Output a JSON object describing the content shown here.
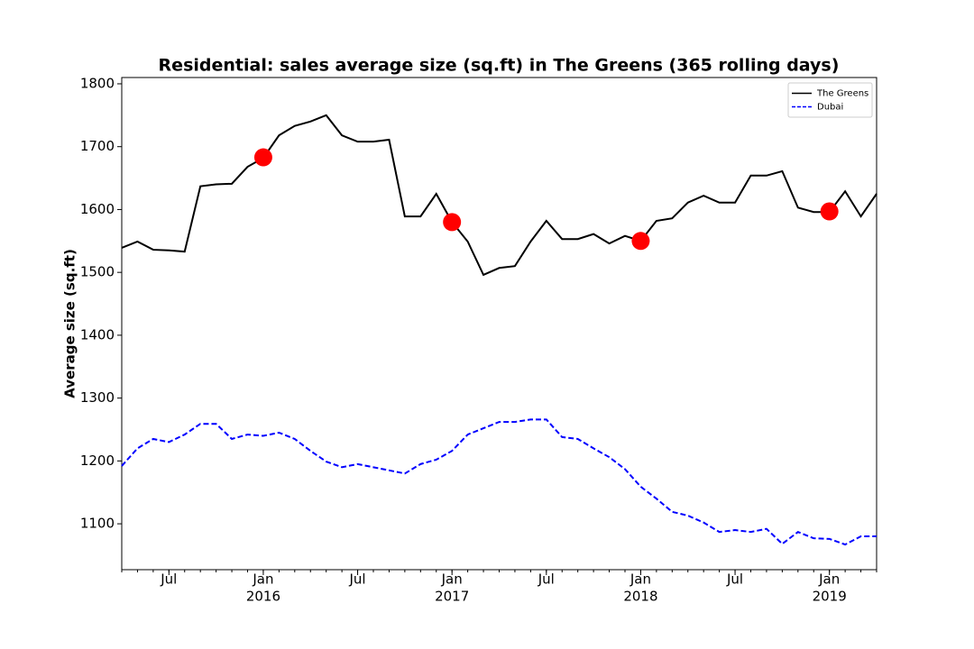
{
  "chart_data": {
    "type": "line",
    "title": "Residential: sales average size (sq.ft) in The Greens (365 rolling days)",
    "ylabel": "Average size (sq.ft)",
    "x": [
      "2015-04",
      "2015-05",
      "2015-06",
      "2015-07",
      "2015-08",
      "2015-09",
      "2015-10",
      "2015-11",
      "2015-12",
      "2016-01",
      "2016-02",
      "2016-03",
      "2016-04",
      "2016-05",
      "2016-06",
      "2016-07",
      "2016-08",
      "2016-09",
      "2016-10",
      "2016-11",
      "2016-12",
      "2017-01",
      "2017-02",
      "2017-03",
      "2017-04",
      "2017-05",
      "2017-06",
      "2017-07",
      "2017-08",
      "2017-09",
      "2017-10",
      "2017-11",
      "2017-12",
      "2018-01",
      "2018-02",
      "2018-03",
      "2018-04",
      "2018-05",
      "2018-06",
      "2018-07",
      "2018-08",
      "2018-09",
      "2018-10",
      "2018-11",
      "2018-12",
      "2019-01",
      "2019-02",
      "2019-03",
      "2019-04"
    ],
    "series": [
      {
        "name": "The Greens",
        "color": "#000000",
        "dash": false,
        "values": [
          1539,
          1549,
          1536,
          1535,
          1533,
          1637,
          1640,
          1641,
          1668,
          1682,
          1718,
          1733,
          1740,
          1750,
          1718,
          1708,
          1708,
          1711,
          1589,
          1589,
          1625,
          1580,
          1549,
          1496,
          1507,
          1510,
          1549,
          1582,
          1553,
          1553,
          1561,
          1546,
          1558,
          1550,
          1582,
          1586,
          1611,
          1622,
          1611,
          1611,
          1654,
          1654,
          1661,
          1603,
          1596,
          1596,
          1629,
          1589,
          1625
        ]
      },
      {
        "name": "Dubai",
        "color": "#0000ff",
        "dash": true,
        "values": [
          1192,
          1220,
          1235,
          1230,
          1242,
          1259,
          1259,
          1235,
          1242,
          1240,
          1245,
          1235,
          1216,
          1199,
          1190,
          1195,
          1190,
          1185,
          1180,
          1195,
          1202,
          1216,
          1242,
          1252,
          1262,
          1262,
          1266,
          1266,
          1238,
          1235,
          1220,
          1206,
          1187,
          1159,
          1140,
          1119,
          1113,
          1102,
          1087,
          1090,
          1087,
          1092,
          1068,
          1087,
          1077,
          1076,
          1067,
          1080,
          1080
        ]
      }
    ],
    "highlights": {
      "color": "#ff0000",
      "x": [
        "2016-01",
        "2017-01",
        "2018-01",
        "2019-01"
      ],
      "values": [
        1683,
        1580,
        1550,
        1597
      ]
    },
    "xlim": [
      "2015-04",
      "2019-04"
    ],
    "xticks": [
      {
        "value": "2015-07",
        "label": "Jul"
      },
      {
        "value": "2016-01",
        "label": "Jan",
        "year": "2016"
      },
      {
        "value": "2016-07",
        "label": "Jul"
      },
      {
        "value": "2017-01",
        "label": "Jan",
        "year": "2017"
      },
      {
        "value": "2017-07",
        "label": "Jul"
      },
      {
        "value": "2018-01",
        "label": "Jan",
        "year": "2018"
      },
      {
        "value": "2018-07",
        "label": "Jul"
      },
      {
        "value": "2019-01",
        "label": "Jan",
        "year": "2019"
      }
    ],
    "ylim": [
      1027,
      1810
    ],
    "yticks": [
      1100,
      1200,
      1300,
      1400,
      1500,
      1600,
      1700,
      1800
    ],
    "legend": "upper right",
    "grid": false
  }
}
